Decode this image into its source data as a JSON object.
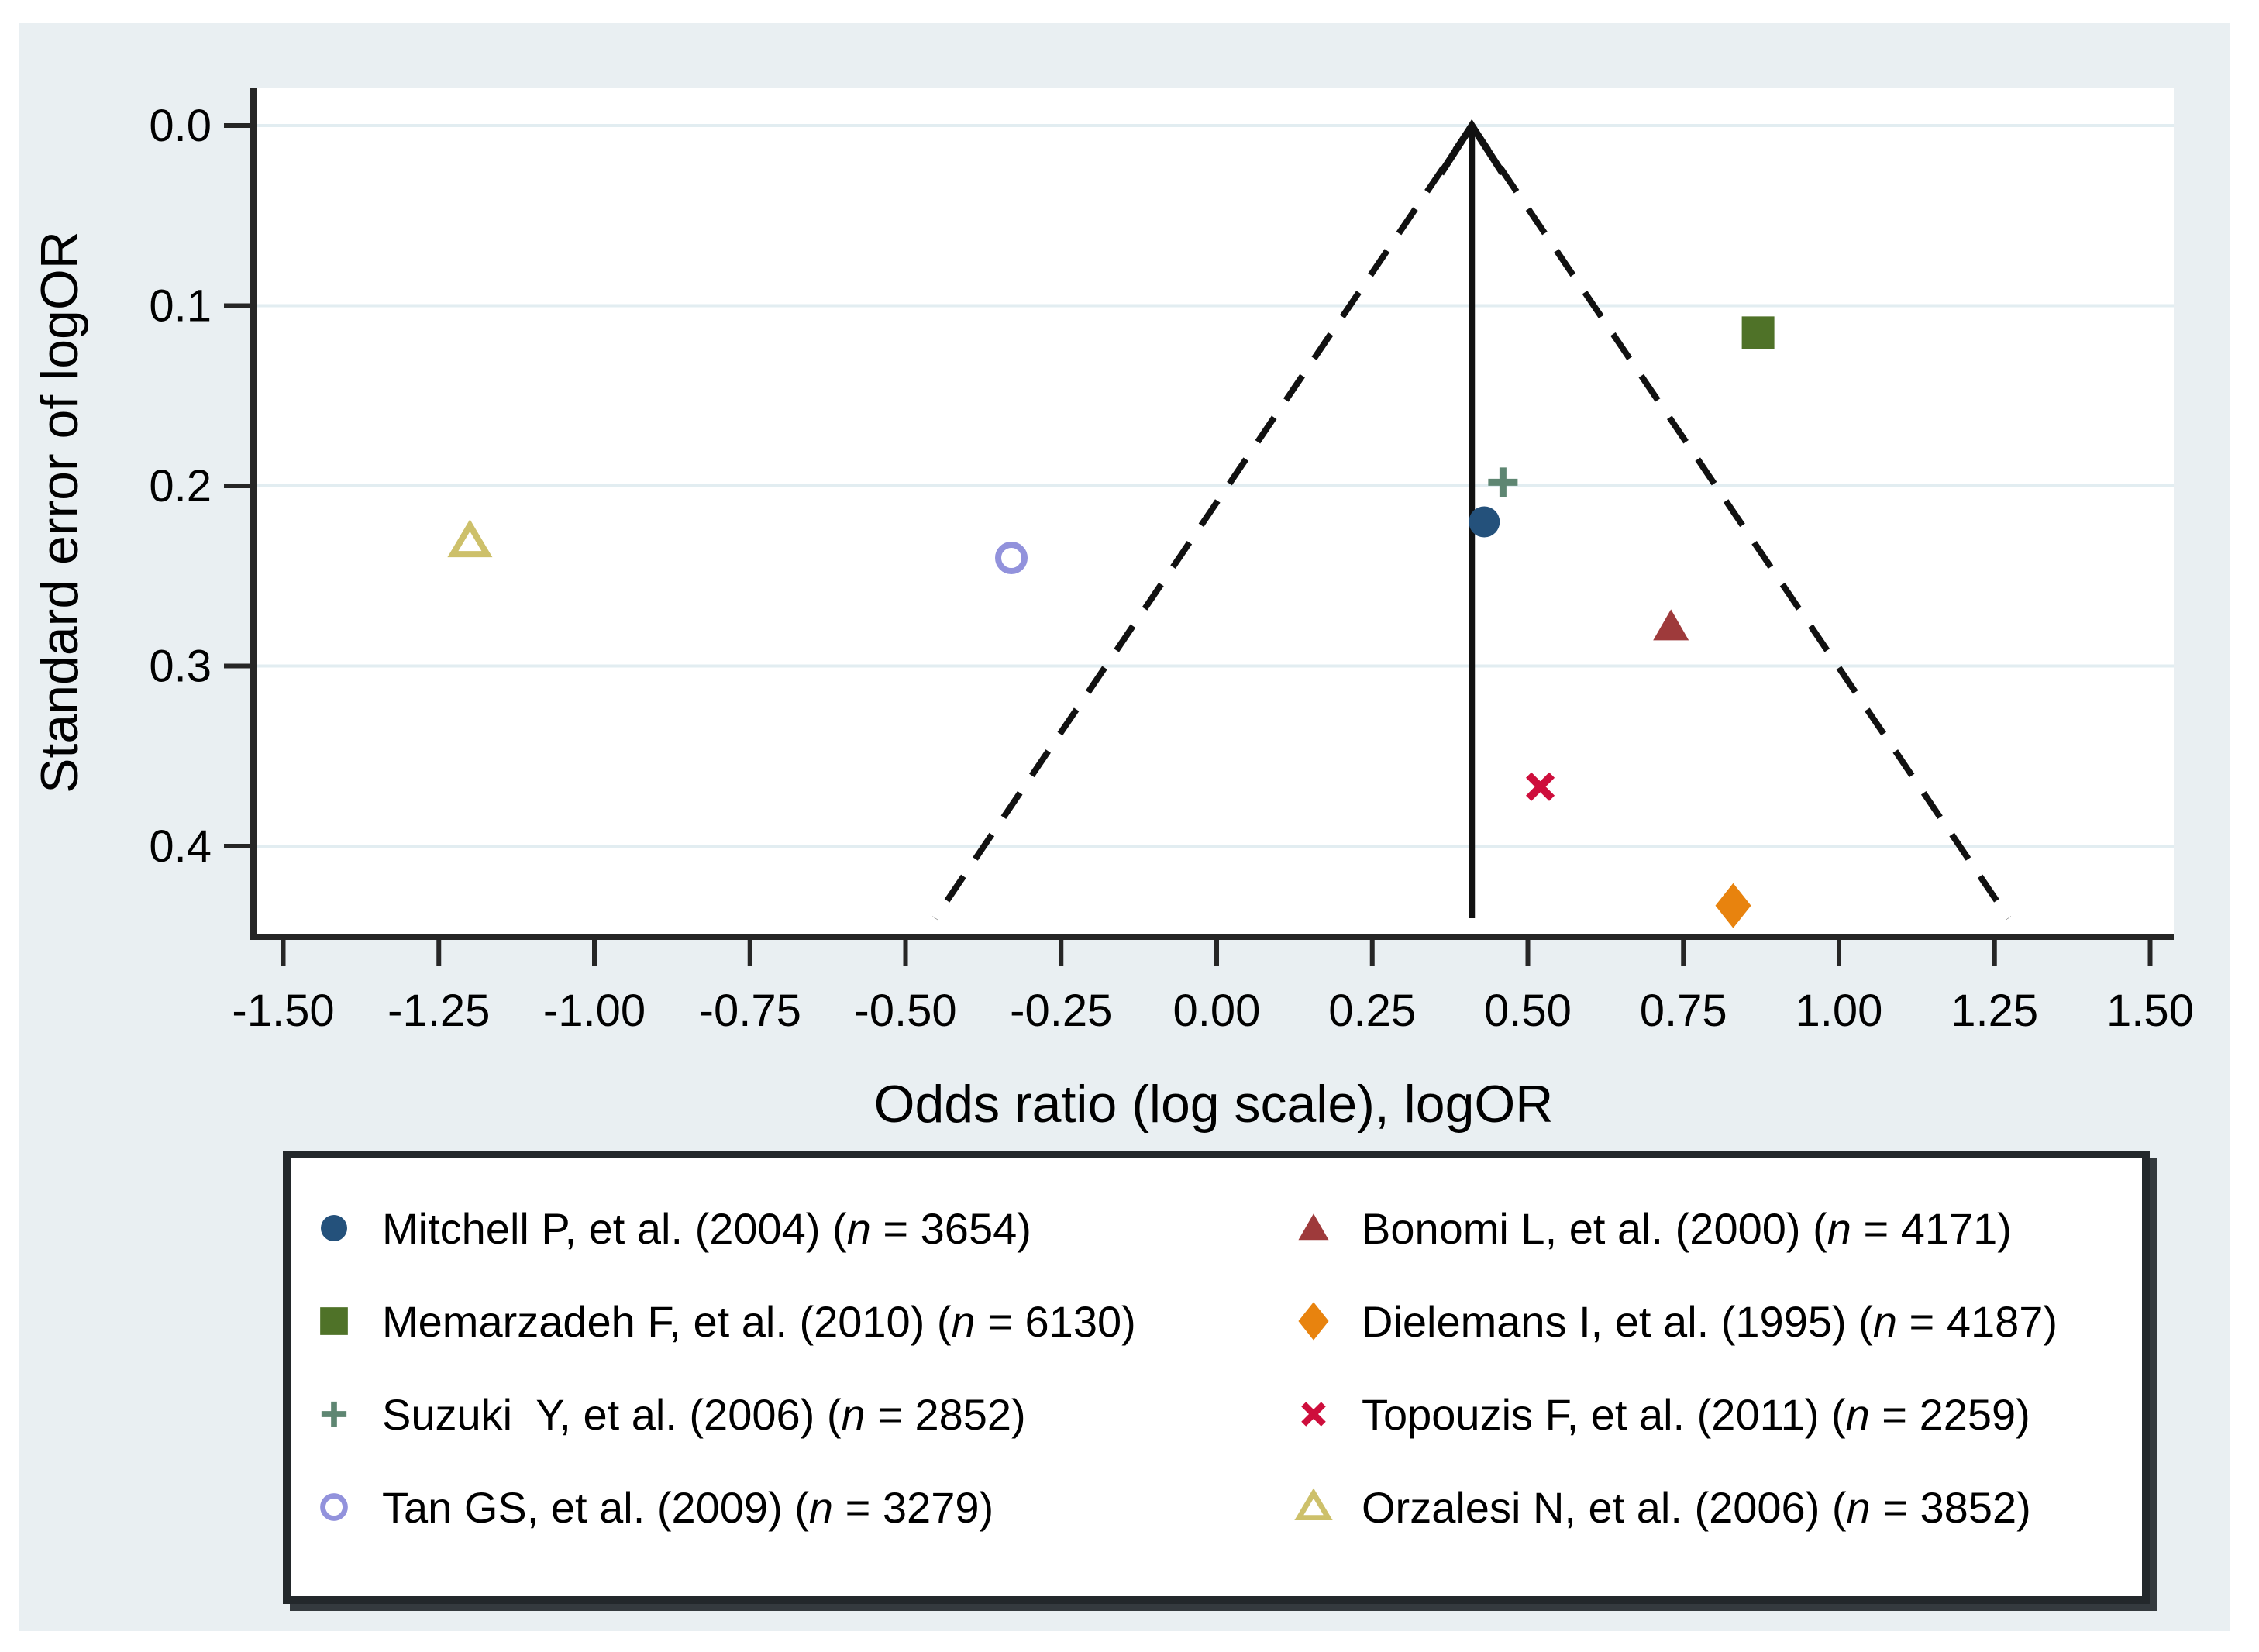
{
  "figure": {
    "kind": "funnel plot (meta-analysis publication-bias plot)",
    "panel_bg": "#e9eff2",
    "plot_bg": "#ffffff",
    "grid_color": "#e2edf1",
    "axis_color": "#262626",
    "funnel_line_color": "#111111"
  },
  "chart_data": {
    "type": "scatter",
    "subtype": "funnel",
    "title": "",
    "xlabel": "Odds ratio (log scale), logOR",
    "ylabel": "Standard error of logOR",
    "xlim": [
      -1.5,
      1.5
    ],
    "ylim": [
      0,
      0.4
    ],
    "y_inverted": true,
    "grid": "horizontal-only",
    "legend_position": "bottom-box-two-columns",
    "x_ticks": [
      {
        "v": -1.5,
        "label": "-1.50"
      },
      {
        "v": -1.25,
        "label": "-1.25"
      },
      {
        "v": -1.0,
        "label": "-1.00"
      },
      {
        "v": -0.75,
        "label": "-0.75"
      },
      {
        "v": -0.5,
        "label": "-0.50"
      },
      {
        "v": -0.25,
        "label": "-0.25"
      },
      {
        "v": 0.0,
        "label": "0.00"
      },
      {
        "v": 0.25,
        "label": "0.25"
      },
      {
        "v": 0.5,
        "label": "0.50"
      },
      {
        "v": 0.75,
        "label": "0.75"
      },
      {
        "v": 1.0,
        "label": "1.00"
      },
      {
        "v": 1.25,
        "label": "1.25"
      },
      {
        "v": 1.5,
        "label": "1.50"
      }
    ],
    "y_ticks": [
      {
        "v": 0.0,
        "label": "0.0"
      },
      {
        "v": 0.1,
        "label": "0.1"
      },
      {
        "v": 0.2,
        "label": "0.2"
      },
      {
        "v": 0.3,
        "label": "0.3"
      },
      {
        "v": 0.4,
        "label": "0.4"
      }
    ],
    "center_line": {
      "x": 0.41,
      "style": "solid-with-up-arrow"
    },
    "funnel": {
      "apex_x": 0.41,
      "z": 1.96,
      "se_bottom": 0.44,
      "style": "dashed"
    },
    "series": [
      {
        "id": "mitchell",
        "study": "Mitchell P, et al. (2004)",
        "n": "3654",
        "marker": "circle",
        "color": "#24517b",
        "logOR": 0.43,
        "se": 0.22
      },
      {
        "id": "memarzadeh",
        "study": "Memarzadeh F, et al. (2010)",
        "n": "6130",
        "marker": "square",
        "color": "#4f7228",
        "logOR": 0.87,
        "se": 0.115
      },
      {
        "id": "suzuki",
        "study": "Suzuki  Y, et al. (2006)",
        "n": "2852",
        "marker": "plus",
        "color": "#5e8672",
        "logOR": 0.46,
        "se": 0.198
      },
      {
        "id": "tan",
        "study": "Tan GS, et al. (2009)",
        "n": "3279",
        "marker": "circle-open",
        "color": "#9292dc",
        "logOR": -0.33,
        "se": 0.24
      },
      {
        "id": "bonomi",
        "study": "Bonomi L, et al. (2000)",
        "n": "4171",
        "marker": "triangle",
        "color": "#9e3a3b",
        "logOR": 0.73,
        "se": 0.278
      },
      {
        "id": "dielemans",
        "study": "Dielemans I, et al. (1995)",
        "n": "4187",
        "marker": "diamond",
        "color": "#e8830e",
        "logOR": 0.83,
        "se": 0.433
      },
      {
        "id": "topouzis",
        "study": "Topouzis F, et al. (2011)",
        "n": "2259",
        "marker": "x",
        "color": "#ce0e3c",
        "logOR": 0.52,
        "se": 0.367
      },
      {
        "id": "orzalesi",
        "study": "Orzalesi N, et al. (2006)",
        "n": "3852",
        "marker": "triangle-open",
        "color": "#cdc06a",
        "logOR": -1.2,
        "se": 0.231
      }
    ]
  },
  "legend": {
    "n_format": {
      "open": "(",
      "symbol": "n",
      "equals": " = ",
      "close": ")"
    }
  }
}
